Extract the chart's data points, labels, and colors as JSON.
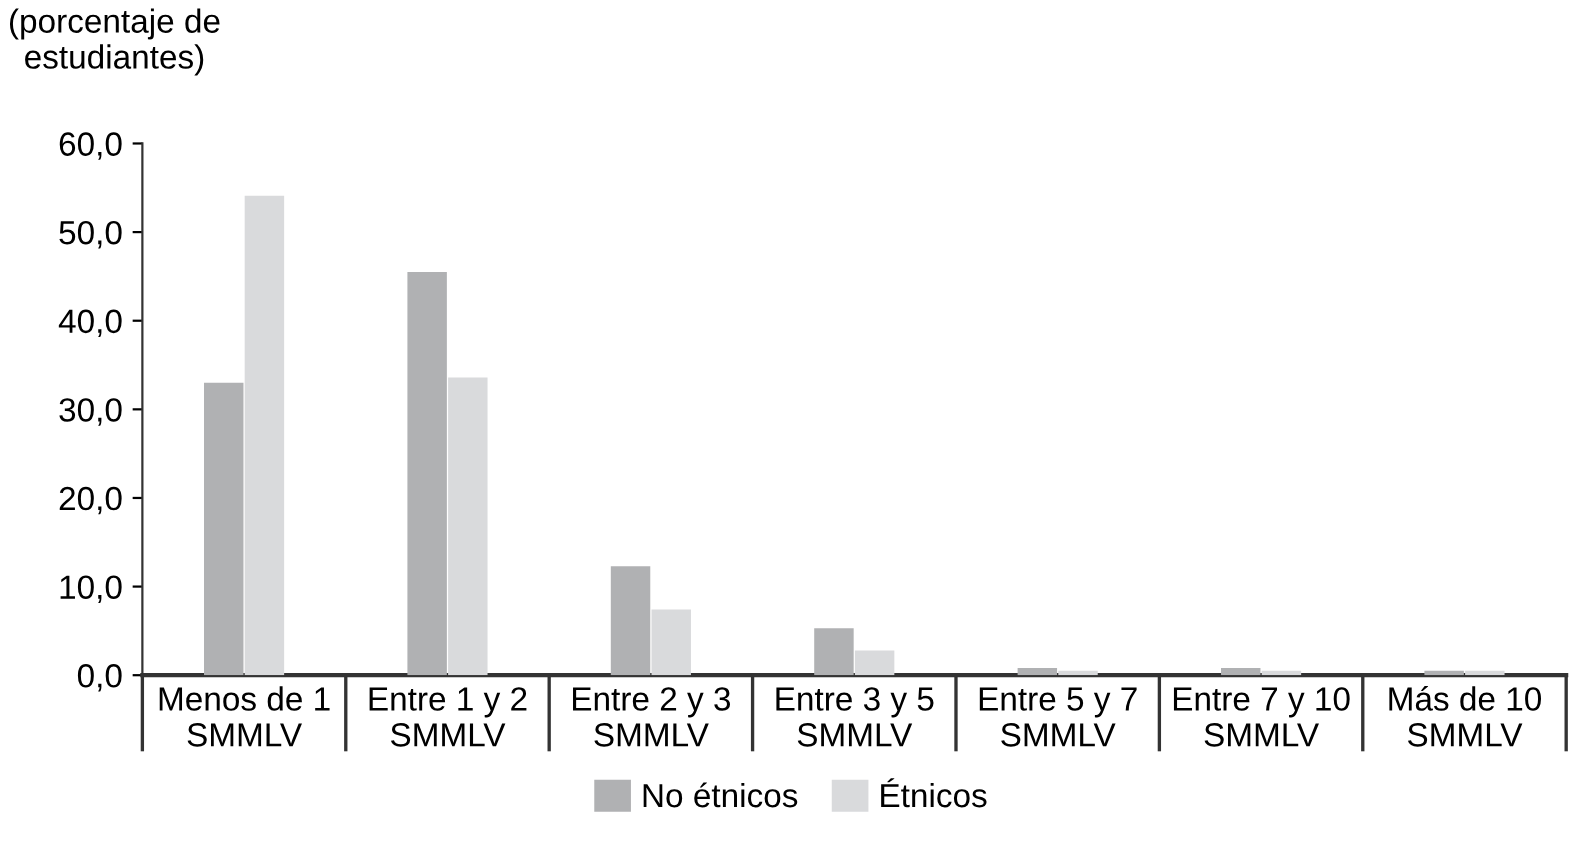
{
  "chart_data": {
    "type": "bar",
    "ylabel": "(porcentaje de\nestudiantes)",
    "categories": [
      "Menos de 1\nSMMLV",
      "Entre 1 y 2\nSMMLV",
      "Entre 2 y 3\nSMMLV",
      "Entre 3 y 5\nSMMLV",
      "Entre 5 y 7\nSMMLV",
      "Entre 7 y 10\nSMMLV",
      "Más de 10\nSMMLV"
    ],
    "series": [
      {
        "name": "No étnicos",
        "color": "#b0b1b3",
        "values": [
          33.0,
          45.5,
          12.3,
          5.3,
          0.8,
          0.8,
          0.5
        ]
      },
      {
        "name": "Étnicos",
        "color": "#d9dadc",
        "values": [
          54.1,
          33.6,
          7.4,
          2.8,
          0.5,
          0.5,
          0.5
        ]
      }
    ],
    "ylim": [
      0,
      60
    ],
    "yticks": [
      {
        "value": 0,
        "label": "0,0"
      },
      {
        "value": 10,
        "label": "10,0"
      },
      {
        "value": 20,
        "label": "20,0"
      },
      {
        "value": 30,
        "label": "30,0"
      },
      {
        "value": 40,
        "label": "40,0"
      },
      {
        "value": 50,
        "label": "50,0"
      },
      {
        "value": 60,
        "label": "60,0"
      }
    ],
    "grid": false,
    "legend": "bottom"
  }
}
